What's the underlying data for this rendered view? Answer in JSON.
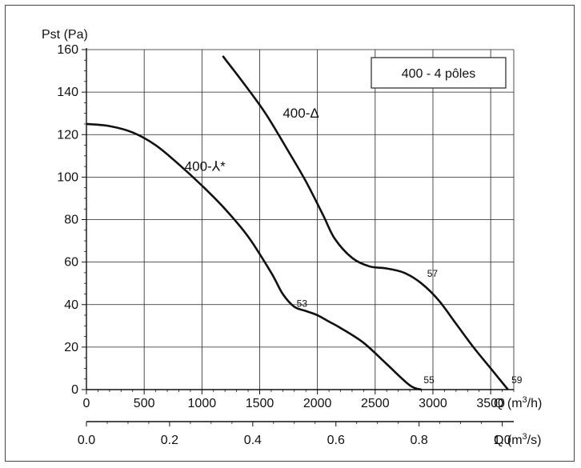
{
  "chart_data": {
    "type": "line",
    "title": "",
    "ylabel": "Pst (Pa)",
    "xlabel": "Q (m3/h)",
    "xlabel_secondary": "Q (m3/s)",
    "xlim": [
      0,
      3700
    ],
    "ylim": [
      0,
      160
    ],
    "xticks": [
      0,
      500,
      1000,
      1500,
      2000,
      2500,
      3000,
      3500
    ],
    "yticks": [
      0,
      20,
      40,
      60,
      80,
      100,
      120,
      140,
      160
    ],
    "secondary_xticks": [
      "0.0",
      "0.2",
      "0.4",
      "0.6",
      "0.8",
      "1.0"
    ],
    "secondary_xtick_values": [
      0.0,
      0.2,
      0.4,
      0.6,
      0.8,
      1.0
    ],
    "grid": true,
    "legend_box": "400 - 4 pôles",
    "legend_position": "top-right",
    "series": [
      {
        "name": "400-Δ",
        "label_at": [
          1700,
          128
        ],
        "x": [
          1180,
          1350,
          1550,
          1750,
          1900,
          2050,
          2150,
          2300,
          2450,
          2600,
          2750,
          2900,
          3050,
          3200,
          3350,
          3500,
          3650
        ],
        "y": [
          157,
          145,
          130,
          112,
          98,
          82,
          71,
          62,
          58,
          57,
          55,
          50,
          42,
          31,
          20,
          10,
          0
        ]
      },
      {
        "name": "400-⅄*",
        "label_at": [
          850,
          103
        ],
        "x": [
          0,
          200,
          400,
          600,
          800,
          1000,
          1200,
          1400,
          1600,
          1700,
          1800,
          1900,
          2000,
          2100,
          2200,
          2400,
          2600,
          2800,
          2900
        ],
        "y": [
          125,
          124,
          121,
          115,
          106,
          96,
          85,
          72,
          55,
          45,
          39,
          37,
          35,
          32,
          29,
          22,
          12,
          2,
          0
        ]
      }
    ],
    "annotations": [
      {
        "text": "57",
        "x": 2950,
        "y": 53
      },
      {
        "text": "53",
        "x": 1820,
        "y": 39
      },
      {
        "text": "55",
        "x": 2920,
        "y": 3
      },
      {
        "text": "59",
        "x": 3680,
        "y": 3
      }
    ]
  }
}
